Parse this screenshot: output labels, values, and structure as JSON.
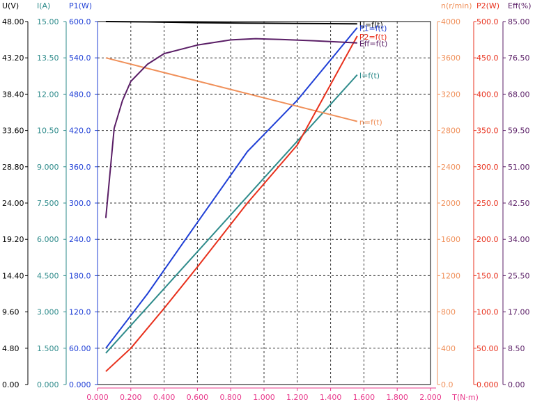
{
  "chart_data": {
    "type": "line",
    "x_axis": {
      "label": "T(N·m)",
      "min": 0,
      "max": 2.0,
      "ticks": [
        "0.000",
        "0.200",
        "0.400",
        "0.600",
        "0.800",
        "1.000",
        "1.200",
        "1.400",
        "1.600",
        "1.800",
        "2.000"
      ],
      "color": "#e8388a"
    },
    "grid": true,
    "y_axes": [
      {
        "id": "U",
        "label": "U(V)",
        "min": 0,
        "max": 48,
        "side": "left",
        "color": "#000000",
        "ticks": [
          "0.00",
          "4.80",
          "9.60",
          "14.40",
          "19.20",
          "24.00",
          "28.80",
          "33.60",
          "38.40",
          "43.20",
          "48.00"
        ]
      },
      {
        "id": "I",
        "label": "I(A)",
        "min": 0,
        "max": 15,
        "side": "left",
        "color": "#2e8b8b",
        "ticks": [
          "0.000",
          "1.500",
          "3.000",
          "4.500",
          "6.000",
          "7.500",
          "9.000",
          "10.50",
          "12.00",
          "13.50",
          "15.00"
        ]
      },
      {
        "id": "P1",
        "label": "P1(W)",
        "min": 0,
        "max": 600,
        "side": "left",
        "color": "#1f3fd6",
        "ticks": [
          "0.000",
          "60.00",
          "120.0",
          "180.0",
          "240.0",
          "300.0",
          "360.0",
          "420.0",
          "480.0",
          "540.0",
          "600.0"
        ]
      },
      {
        "id": "n",
        "label": "n(r/min)",
        "min": 0,
        "max": 4000,
        "side": "right",
        "color": "#f0905a",
        "ticks": [
          "0.0",
          "400",
          "800",
          "1200",
          "1600",
          "2000",
          "2400",
          "2800",
          "3200",
          "3600",
          "4000"
        ]
      },
      {
        "id": "P2",
        "label": "P2(W)",
        "min": 0,
        "max": 500,
        "side": "right",
        "color": "#e8301c",
        "ticks": [
          "0.000",
          "50.00",
          "100.0",
          "150.0",
          "200.0",
          "250.0",
          "300.0",
          "350.0",
          "400.0",
          "450.0",
          "500.0"
        ]
      },
      {
        "id": "Eff",
        "label": "Eff(%)",
        "min": 0,
        "max": 85,
        "side": "right",
        "color": "#5a1e66",
        "ticks": [
          "0.00",
          "8.50",
          "17.00",
          "25.50",
          "34.00",
          "42.50",
          "51.00",
          "59.50",
          "68.00",
          "76.50",
          "85.00"
        ]
      }
    ],
    "series": [
      {
        "name": "U=f(t)",
        "axis": "U",
        "color": "#000000",
        "x": [
          0.05,
          0.3,
          0.6,
          0.9,
          1.2,
          1.56
        ],
        "y": [
          48.0,
          47.95,
          47.85,
          47.8,
          47.75,
          47.7
        ]
      },
      {
        "name": "I=f(t)",
        "axis": "I",
        "color": "#2e8b8b",
        "x": [
          0.05,
          1.56
        ],
        "y": [
          1.3,
          12.8
        ]
      },
      {
        "name": "P1=f(t)",
        "axis": "P1",
        "color": "#1f3fd6",
        "x": [
          0.05,
          0.3,
          0.6,
          0.9,
          1.2,
          1.56
        ],
        "y": [
          60,
          150,
          268,
          385,
          470,
          590
        ]
      },
      {
        "name": "n=f(t)",
        "axis": "n",
        "color": "#f0905a",
        "x": [
          0.05,
          1.56
        ],
        "y": [
          3600,
          2900
        ]
      },
      {
        "name": "P2=f(t)",
        "axis": "P2",
        "color": "#e8301c",
        "x": [
          0.05,
          0.2,
          0.4,
          0.6,
          0.9,
          1.2,
          1.56
        ],
        "y": [
          18,
          50,
          105,
          162,
          250,
          330,
          480
        ]
      },
      {
        "name": "Eff=f(t)",
        "axis": "Eff",
        "color": "#5a1e66",
        "x": [
          0.05,
          0.1,
          0.15,
          0.2,
          0.3,
          0.4,
          0.6,
          0.8,
          0.95,
          1.1,
          1.3,
          1.56
        ],
        "y": [
          39.0,
          60.0,
          66.5,
          71.0,
          75.0,
          77.5,
          79.5,
          80.7,
          81.0,
          80.8,
          80.5,
          80.0
        ]
      }
    ]
  }
}
